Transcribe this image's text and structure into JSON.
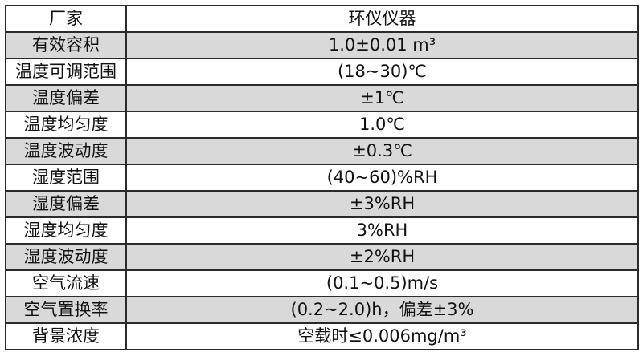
{
  "table": {
    "columns": {
      "label_header_example": "厂家",
      "value_header_example": "环仪仪器"
    },
    "colors": {
      "row_alt_bg": "#d9d9d9",
      "row_bg": "#ffffff",
      "border": "#2b2b2b",
      "text": "#111111"
    },
    "rows": [
      {
        "label": "厂家",
        "value": "环仪仪器",
        "shaded": false
      },
      {
        "label": "有效容积",
        "value": "1.0±0.01 m³",
        "shaded": true
      },
      {
        "label": "温度可调范围",
        "value": "(18~30)℃",
        "shaded": false
      },
      {
        "label": "温度偏差",
        "value": "±1℃",
        "shaded": true
      },
      {
        "label": "温度均匀度",
        "value": "1.0℃",
        "shaded": false
      },
      {
        "label": "温度波动度",
        "value": "±0.3℃",
        "shaded": true
      },
      {
        "label": "湿度范围",
        "value": "(40~60)%RH",
        "shaded": false
      },
      {
        "label": "湿度偏差",
        "value": "±3%RH",
        "shaded": true
      },
      {
        "label": "湿度均匀度",
        "value": "3%RH",
        "shaded": false
      },
      {
        "label": "湿度波动度",
        "value": "±2%RH",
        "shaded": true
      },
      {
        "label": "空气流速",
        "value": "(0.1~0.5)m/s",
        "shaded": false
      },
      {
        "label": "空气置换率",
        "value": "(0.2~2.0)h，偏差±3%",
        "shaded": true
      },
      {
        "label": "背景浓度",
        "value": "空载时≤0.006mg/m³",
        "shaded": false
      }
    ]
  }
}
